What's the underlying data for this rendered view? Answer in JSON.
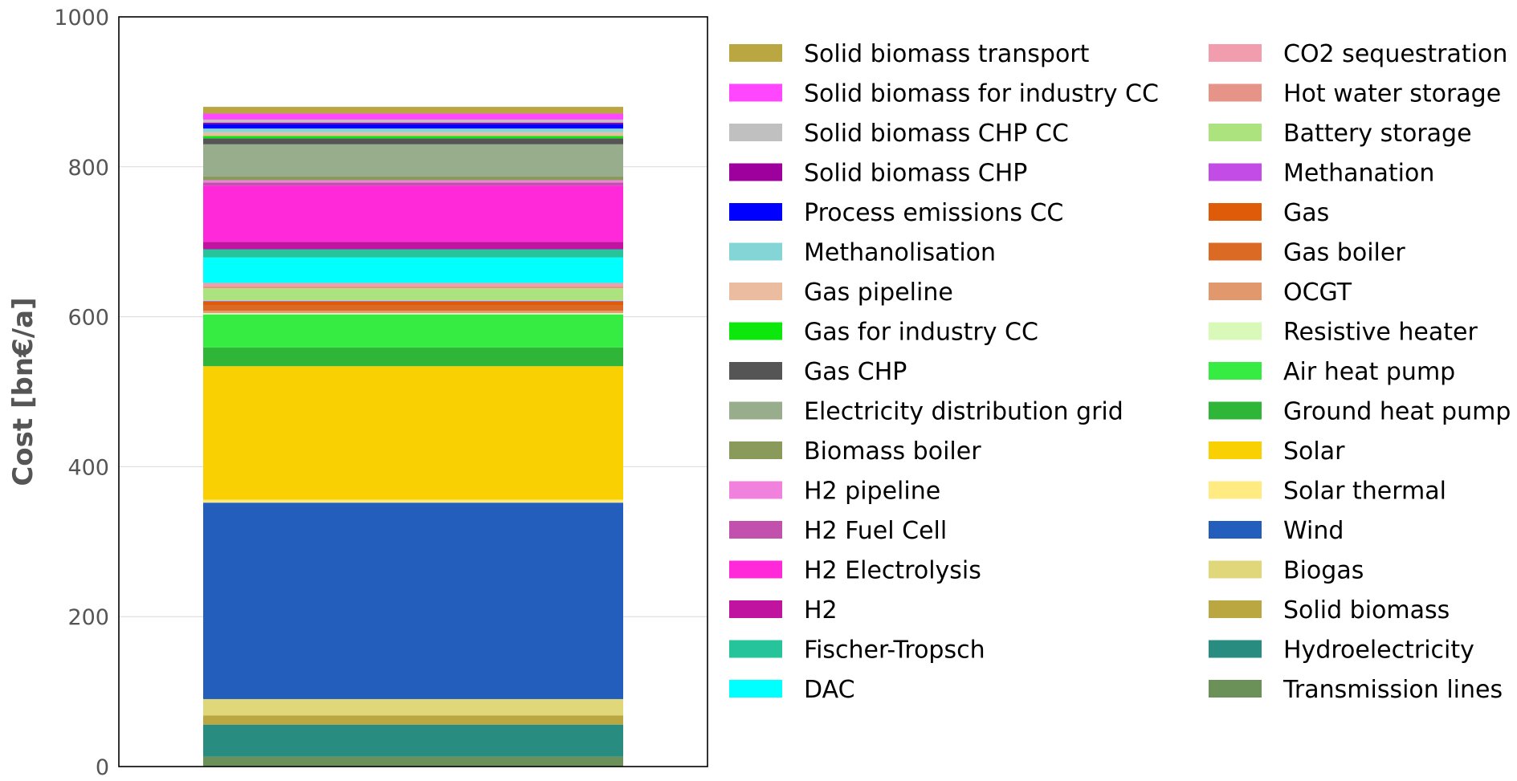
{
  "chart_data": {
    "type": "stacked_bar",
    "title": "",
    "xlabel": "",
    "ylabel": "Cost [bn€/a]",
    "ylim": [
      0,
      1000
    ],
    "yticks": [
      0,
      200,
      400,
      600,
      800,
      1000
    ],
    "grid": "horizontal",
    "legend": "right, two columns",
    "stack_bottom_to_top": [
      {
        "name": "Transmission lines",
        "value": 13,
        "color": "#6b9158"
      },
      {
        "name": "Hydroelectricity",
        "value": 43,
        "color": "#298c81"
      },
      {
        "name": "Solid biomass",
        "value": 12,
        "color": "#baa741"
      },
      {
        "name": "Biogas",
        "value": 22,
        "color": "#e0d67a"
      },
      {
        "name": "Wind",
        "value": 262,
        "color": "#235ebc"
      },
      {
        "name": "Solar thermal",
        "value": 4,
        "color": "#ffeb82"
      },
      {
        "name": "Solar",
        "value": 178,
        "color": "#f9d002"
      },
      {
        "name": "Ground heat pump",
        "value": 25,
        "color": "#2fb537"
      },
      {
        "name": "Air heat pump",
        "value": 44,
        "color": "#36eb41"
      },
      {
        "name": "Resistive heater",
        "value": 2,
        "color": "#d8f9b8"
      },
      {
        "name": "OCGT",
        "value": 3,
        "color": "#e0986c"
      },
      {
        "name": "Gas boiler",
        "value": 7,
        "color": "#db6a25"
      },
      {
        "name": "Gas",
        "value": 5,
        "color": "#e05b09"
      },
      {
        "name": "Methanation",
        "value": 1,
        "color": "#c44ce6"
      },
      {
        "name": "Battery storage",
        "value": 17,
        "color": "#ace37f"
      },
      {
        "name": "Hot water storage",
        "value": 3,
        "color": "#e69487"
      },
      {
        "name": "CO2 sequestration",
        "value": 4,
        "color": "#f29dae"
      },
      {
        "name": "DAC",
        "value": 34,
        "color": "#00ffff"
      },
      {
        "name": "Fischer-Tropsch",
        "value": 11,
        "color": "#25c49a"
      },
      {
        "name": "H2",
        "value": 10,
        "color": "#bf13a0"
      },
      {
        "name": "H2 Electrolysis",
        "value": 75,
        "color": "#ff29d9"
      },
      {
        "name": "H2 Fuel Cell",
        "value": 4,
        "color": "#c251ae"
      },
      {
        "name": "H2 pipeline",
        "value": 3,
        "color": "#f081dc"
      },
      {
        "name": "Biomass boiler",
        "value": 5,
        "color": "#8a9a5b"
      },
      {
        "name": "Electricity distribution grid",
        "value": 43,
        "color": "#97ad8c"
      },
      {
        "name": "Gas CHP",
        "value": 8,
        "color": "#555555"
      },
      {
        "name": "Gas for industry CC",
        "value": 3,
        "color": "#0ce80c"
      },
      {
        "name": "Gas pipeline",
        "value": 5,
        "color": "#ebbca0"
      },
      {
        "name": "Methanolisation",
        "value": 5,
        "color": "#83d6d5"
      },
      {
        "name": "Process emissions CC",
        "value": 6,
        "color": "#0000ff"
      },
      {
        "name": "Solid biomass CHP",
        "value": 2,
        "color": "#9e009e"
      },
      {
        "name": "Solid biomass CHP CC",
        "value": 4,
        "color": "#c0c0c0"
      },
      {
        "name": "Solid biomass for industry CC",
        "value": 8,
        "color": "#ff47ff"
      },
      {
        "name": "Solid biomass transport",
        "value": 9,
        "color": "#baa741"
      }
    ],
    "legend_columns": [
      [
        "Solid biomass transport",
        "Solid biomass for industry CC",
        "Solid biomass CHP CC",
        "Solid biomass CHP",
        "Process emissions CC",
        "Methanolisation",
        "Gas pipeline",
        "Gas for industry CC",
        "Gas CHP",
        "Electricity distribution grid",
        "Biomass boiler",
        "H2 pipeline",
        "H2 Fuel Cell",
        "H2 Electrolysis",
        "H2",
        "Fischer-Tropsch",
        "DAC"
      ],
      [
        "CO2 sequestration",
        "Hot water storage",
        "Battery storage",
        "Methanation",
        "Gas",
        "Gas boiler",
        "OCGT",
        "Resistive heater",
        "Air heat pump",
        "Ground heat pump",
        "Solar",
        "Solar thermal",
        "Wind",
        "Biogas",
        "Solid biomass",
        "Hydroelectricity",
        "Transmission lines"
      ]
    ]
  }
}
